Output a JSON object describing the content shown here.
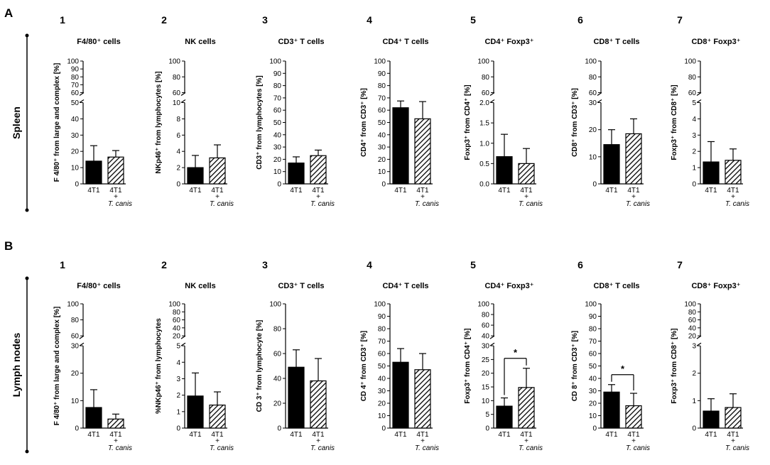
{
  "figure": {
    "panels": [
      {
        "letter": "A",
        "row_label": "Spleen"
      },
      {
        "letter": "B",
        "row_label": "Lymph nodes"
      }
    ],
    "bar_fill_colors": {
      "group_1": "#000000",
      "group_2": "hatched"
    }
  },
  "chart_data": [
    {
      "row": "A",
      "row_label": "Spleen",
      "num": "1",
      "type": "bar",
      "title": "F4/80⁺ cells",
      "ylabel": "F 4/80⁺ from large and complex [%]",
      "categories": [
        "4T1",
        "4T1 + T. canis"
      ],
      "axis_segments": [
        {
          "range": [
            0,
            50
          ],
          "ticks": [
            "0",
            "10",
            "20",
            "30",
            "40",
            "50"
          ]
        },
        {
          "range": [
            60,
            100
          ],
          "ticks": [
            "60",
            "70",
            "80",
            "90",
            "100"
          ]
        }
      ],
      "values": [
        14,
        16.5
      ],
      "errors": [
        9.5,
        4
      ],
      "significance": ""
    },
    {
      "row": "A",
      "row_label": "Spleen",
      "num": "2",
      "type": "bar",
      "title": "NK cells",
      "ylabel": "NKp46⁺ from lymphocytes [%]",
      "categories": [
        "4T1",
        "4T1 + T. canis"
      ],
      "axis_segments": [
        {
          "range": [
            0,
            10
          ],
          "ticks": [
            "0",
            "2",
            "4",
            "6",
            "8",
            "10"
          ]
        },
        {
          "range": [
            60,
            100
          ],
          "ticks": [
            "60",
            "80",
            "100"
          ]
        }
      ],
      "values": [
        2.0,
        3.2
      ],
      "errors": [
        1.5,
        1.6
      ],
      "significance": ""
    },
    {
      "row": "A",
      "row_label": "Spleen",
      "num": "3",
      "type": "bar",
      "title": "CD3⁺ T cells",
      "ylabel": "CD3⁺ from lymphocytes [%]",
      "categories": [
        "4T1",
        "4T1 + T. canis"
      ],
      "axis_segments": [
        {
          "range": [
            0,
            100
          ],
          "ticks": [
            "0",
            "10",
            "20",
            "30",
            "40",
            "50",
            "60",
            "70",
            "80",
            "90",
            "100"
          ]
        }
      ],
      "values": [
        17,
        23
      ],
      "errors": [
        5,
        4.5
      ],
      "significance": ""
    },
    {
      "row": "A",
      "row_label": "Spleen",
      "num": "4",
      "type": "bar",
      "title": "CD4⁺ T cells",
      "ylabel": "CD4⁺ from CD3⁺ [%]",
      "categories": [
        "4T1",
        "4T1 + T. canis"
      ],
      "axis_segments": [
        {
          "range": [
            0,
            100
          ],
          "ticks": [
            "0",
            "10",
            "20",
            "30",
            "40",
            "50",
            "60",
            "70",
            "80",
            "90",
            "100"
          ]
        }
      ],
      "values": [
        62,
        53
      ],
      "errors": [
        5.5,
        14
      ],
      "significance": ""
    },
    {
      "row": "A",
      "row_label": "Spleen",
      "num": "5",
      "type": "bar",
      "title": "CD4⁺ Foxp3⁺",
      "ylabel": "Foxp3⁺ from CD4⁺ [%]",
      "categories": [
        "4T1",
        "4T1 + T. canis"
      ],
      "axis_segments": [
        {
          "range": [
            0,
            2
          ],
          "ticks": [
            "0.0",
            "0.5",
            "1.0",
            "1.5",
            "2.0"
          ]
        },
        {
          "range": [
            60,
            100
          ],
          "ticks": [
            "60",
            "80",
            "100"
          ]
        }
      ],
      "values": [
        0.67,
        0.5
      ],
      "errors": [
        0.55,
        0.37
      ],
      "significance": ""
    },
    {
      "row": "A",
      "row_label": "Spleen",
      "num": "6",
      "type": "bar",
      "title": "CD8⁺ T cells",
      "ylabel": "CD8⁺ from CD3⁺ [%]",
      "categories": [
        "4T1",
        "4T1 + T. canis"
      ],
      "axis_segments": [
        {
          "range": [
            0,
            30
          ],
          "ticks": [
            "0",
            "10",
            "20",
            "30"
          ]
        },
        {
          "range": [
            60,
            100
          ],
          "ticks": [
            "60",
            "80",
            "100"
          ]
        }
      ],
      "values": [
        14.5,
        18.5
      ],
      "errors": [
        5.5,
        5.5
      ],
      "significance": ""
    },
    {
      "row": "A",
      "row_label": "Spleen",
      "num": "7",
      "type": "bar",
      "title": "CD8⁺ Foxp3⁺",
      "ylabel": "Foxp3⁺ from CD8⁺ [%]",
      "categories": [
        "4T1",
        "4T1 + T. canis"
      ],
      "axis_segments": [
        {
          "range": [
            0,
            5
          ],
          "ticks": [
            "0",
            "1",
            "2",
            "3",
            "4",
            "5"
          ]
        },
        {
          "range": [
            60,
            100
          ],
          "ticks": [
            "60",
            "80",
            "100"
          ]
        }
      ],
      "values": [
        1.35,
        1.45
      ],
      "errors": [
        1.25,
        0.7
      ],
      "significance": ""
    },
    {
      "row": "B",
      "row_label": "Lymph nodes",
      "num": "1",
      "type": "bar",
      "title": "F4/80⁺ cells",
      "ylabel": "F 4/80⁺ from large and complex [%]",
      "categories": [
        "4T1",
        "4T1 + T. canis"
      ],
      "axis_segments": [
        {
          "range": [
            0,
            30
          ],
          "ticks": [
            "0",
            "10",
            "20",
            "30"
          ]
        },
        {
          "range": [
            60,
            100
          ],
          "ticks": [
            "60",
            "80",
            "100"
          ]
        }
      ],
      "values": [
        7.5,
        3.3
      ],
      "errors": [
        6.5,
        1.8
      ],
      "significance": ""
    },
    {
      "row": "B",
      "row_label": "Lymph nodes",
      "num": "2",
      "type": "bar",
      "title": "NK cells",
      "ylabel": "%NKp46⁺ from lymphocytes",
      "categories": [
        "4T1",
        "4T1 + T. canis"
      ],
      "axis_segments": [
        {
          "range": [
            0,
            5
          ],
          "ticks": [
            "0",
            "1",
            "2",
            "3",
            "4",
            "5"
          ]
        },
        {
          "range": [
            20,
            100
          ],
          "ticks": [
            "20",
            "40",
            "60",
            "80",
            "100"
          ]
        }
      ],
      "values": [
        1.95,
        1.4
      ],
      "errors": [
        1.4,
        0.8
      ],
      "significance": ""
    },
    {
      "row": "B",
      "row_label": "Lymph nodes",
      "num": "3",
      "type": "bar",
      "title": "CD3⁺ T cells",
      "ylabel": "CD 3⁺ from lymphocyte [%]",
      "categories": [
        "4T1",
        "4T1 + T. canis"
      ],
      "axis_segments": [
        {
          "range": [
            0,
            100
          ],
          "ticks": [
            "0",
            "20",
            "40",
            "60",
            "80",
            "100"
          ]
        }
      ],
      "values": [
        49,
        38
      ],
      "errors": [
        14,
        18
      ],
      "significance": ""
    },
    {
      "row": "B",
      "row_label": "Lymph nodes",
      "num": "4",
      "type": "bar",
      "title": "CD4⁺ T cells",
      "ylabel": "CD 4⁺ from CD3⁺ [%]",
      "categories": [
        "4T1",
        "4T1 + T. canis"
      ],
      "axis_segments": [
        {
          "range": [
            0,
            100
          ],
          "ticks": [
            "0",
            "10",
            "20",
            "30",
            "40",
            "50",
            "60",
            "70",
            "80",
            "90",
            "100"
          ]
        }
      ],
      "values": [
        53,
        47
      ],
      "errors": [
        11,
        13
      ],
      "significance": ""
    },
    {
      "row": "B",
      "row_label": "Lymph nodes",
      "num": "5",
      "type": "bar",
      "title": "CD4⁺ Foxp3⁺",
      "ylabel": "Foxp3⁺ from CD4⁺ [%]",
      "categories": [
        "4T1",
        "4T1 + T. canis"
      ],
      "axis_segments": [
        {
          "range": [
            0,
            30
          ],
          "ticks": [
            "0",
            "5",
            "10",
            "15",
            "20",
            "25",
            "30"
          ]
        },
        {
          "range": [
            40,
            100
          ],
          "ticks": [
            "40",
            "60",
            "80",
            "100"
          ]
        }
      ],
      "values": [
        8,
        14.8
      ],
      "errors": [
        3,
        7
      ],
      "significance": "*"
    },
    {
      "row": "B",
      "row_label": "Lymph nodes",
      "num": "6",
      "type": "bar",
      "title": "CD8⁺ T cells",
      "ylabel": "CD 8⁺ from CD3⁺ [%]",
      "categories": [
        "4T1",
        "4T1 + T. canis"
      ],
      "axis_segments": [
        {
          "range": [
            0,
            100
          ],
          "ticks": [
            "0",
            "10",
            "20",
            "30",
            "40",
            "50",
            "60",
            "70",
            "80",
            "90",
            "100"
          ]
        }
      ],
      "values": [
        29,
        18
      ],
      "errors": [
        6,
        10
      ],
      "significance": "*"
    },
    {
      "row": "B",
      "row_label": "Lymph nodes",
      "num": "7",
      "type": "bar",
      "title": "CD8⁺ Foxp3⁺",
      "ylabel": "Foxp3⁺ from CD8⁺ [%]",
      "categories": [
        "4T1",
        "4T1 + T. canis"
      ],
      "axis_segments": [
        {
          "range": [
            0,
            3
          ],
          "ticks": [
            "0",
            "1",
            "2",
            "3"
          ]
        },
        {
          "range": [
            20,
            100
          ],
          "ticks": [
            "20",
            "40",
            "60",
            "80",
            "100"
          ]
        }
      ],
      "values": [
        0.62,
        0.75
      ],
      "errors": [
        0.45,
        0.5
      ],
      "significance": ""
    }
  ]
}
